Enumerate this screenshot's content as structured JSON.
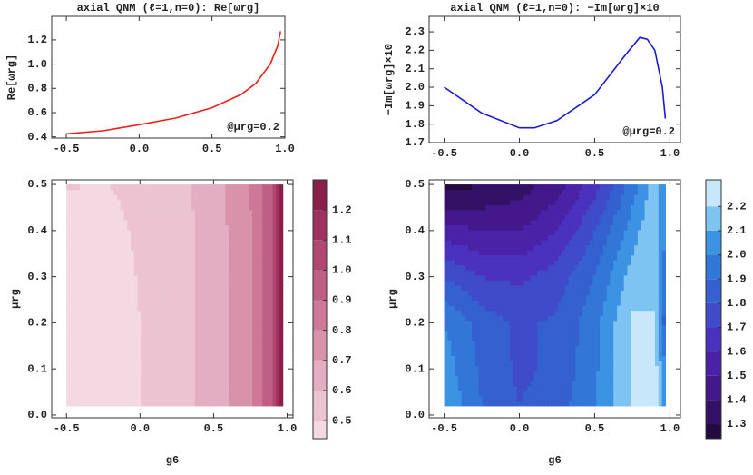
{
  "chart_data": [
    {
      "type": "line",
      "title": "axial QNM (ℓ=1,n=0): Re[ωrg]",
      "ylabel": "Re[ωrg]",
      "annotation": "@μrg=0.2",
      "x": [
        -0.5,
        -0.25,
        0,
        0.25,
        0.5,
        0.7,
        0.8,
        0.9,
        0.95,
        0.97
      ],
      "values": [
        0.425,
        0.45,
        0.5,
        0.555,
        0.64,
        0.75,
        0.84,
        1.0,
        1.15,
        1.27
      ],
      "color": "#e8221b",
      "xlim": [
        -0.6,
        1.0
      ],
      "ylim": [
        0.39,
        1.394
      ],
      "xticks": [
        -0.5,
        {
          "value": 0,
          "label": "0.0"
        },
        0.5,
        {
          "value": 1,
          "label": "1.0"
        }
      ],
      "yticks": [
        0.4,
        0.6,
        0.8,
        {
          "value": 1,
          "label": "1.0"
        },
        1.2
      ]
    },
    {
      "type": "line",
      "title": "axial QNM (ℓ=1,n=0): −Im[ωrg]×10",
      "ylabel": "−Im[ωrg]×10",
      "annotation": "@μrg=0.2",
      "x": [
        -0.5,
        -0.25,
        0,
        0.1,
        0.25,
        0.5,
        0.7,
        0.8,
        0.85,
        0.9,
        0.95,
        0.97
      ],
      "values": [
        2.0,
        1.86,
        1.78,
        1.78,
        1.82,
        1.96,
        2.17,
        2.27,
        2.26,
        2.2,
        2.0,
        1.83
      ],
      "color": "#1a1ad6",
      "xlim": [
        -0.6,
        1.07
      ],
      "ylim": [
        1.7,
        2.384
      ],
      "xticks": [
        -0.5,
        {
          "value": 0,
          "label": "0.0"
        },
        0.5,
        {
          "value": 1,
          "label": "1.0"
        }
      ],
      "yticks": [
        1.7,
        1.8,
        1.9,
        {
          "value": 2,
          "label": "2.0"
        },
        2.1,
        2.2,
        2.3
      ]
    },
    {
      "type": "contour",
      "xlabel": "g6",
      "ylabel": "μrg",
      "x": [
        -0.5,
        -0.25,
        0,
        0.25,
        0.5,
        0.75,
        0.9,
        0.97
      ],
      "y": [
        0.02,
        0.2,
        0.3,
        0.4,
        0.5
      ],
      "z": [
        [
          0.42,
          0.45,
          0.5,
          0.555,
          0.64,
          0.79,
          1.0,
          1.27
        ],
        [
          0.425,
          0.45,
          0.5,
          0.555,
          0.64,
          0.79,
          1.0,
          1.27
        ],
        [
          0.44,
          0.46,
          0.505,
          0.557,
          0.642,
          0.792,
          1.0,
          1.27
        ],
        [
          0.47,
          0.475,
          0.51,
          0.56,
          0.645,
          0.795,
          1.0,
          1.27
        ],
        [
          0.505,
          0.495,
          0.52,
          0.565,
          0.65,
          0.8,
          1.01,
          1.28
        ]
      ],
      "xlim": [
        -0.6,
        1.04
      ],
      "ylim": [
        -0.006,
        0.51
      ],
      "xticks": [
        -0.5,
        {
          "value": 0,
          "label": "0.0"
        },
        0.5,
        {
          "value": 1,
          "label": "1.0"
        }
      ],
      "yticks": [
        {
          "value": 0,
          "label": "0.0"
        },
        0.1,
        0.2,
        0.3,
        0.4,
        0.5
      ],
      "zlim": [
        0.44,
        1.3
      ],
      "zticks": [
        0.5,
        0.6,
        0.7,
        0.8,
        0.9,
        {
          "value": 1,
          "label": "1.0"
        },
        1.1,
        1.2
      ],
      "colors": [
        "#f4d8e2",
        "#ecc3d1",
        "#e3aec1",
        "#d893ab",
        "#cc7896",
        "#bf5f83",
        "#b04770",
        "#9e315d",
        "#88204a"
      ]
    },
    {
      "type": "contour",
      "xlabel": "g6",
      "ylabel": "μrg",
      "x": [
        -0.5,
        -0.25,
        0,
        0.25,
        0.5,
        0.75,
        0.9,
        0.97
      ],
      "y": [
        0.02,
        0.1,
        0.2,
        0.3,
        0.4,
        0.5
      ],
      "z": [
        [
          2.1,
          1.9,
          1.8,
          1.85,
          2.0,
          2.2,
          2.25,
          2.0
        ],
        [
          2.05,
          1.88,
          1.78,
          1.82,
          1.98,
          2.2,
          2.25,
          2.0
        ],
        [
          2.0,
          1.86,
          1.78,
          1.82,
          1.96,
          2.22,
          2.2,
          1.83
        ],
        [
          1.8,
          1.7,
          1.68,
          1.75,
          1.9,
          2.15,
          2.2,
          1.9
        ],
        [
          1.55,
          1.5,
          1.5,
          1.6,
          1.8,
          2.05,
          2.2,
          2.0
        ],
        [
          1.25,
          1.3,
          1.35,
          1.45,
          1.65,
          1.95,
          2.15,
          2.0
        ]
      ],
      "xlim": [
        -0.6,
        1.07
      ],
      "ylim": [
        -0.006,
        0.51
      ],
      "xticks": [
        -0.5,
        {
          "value": 0,
          "label": "0.0"
        },
        0.5,
        {
          "value": 1,
          "label": "1.0"
        }
      ],
      "yticks": [
        {
          "value": 0,
          "label": "0.0"
        },
        0.1,
        0.2,
        0.3,
        0.4,
        0.5
      ],
      "zlim": [
        1.24,
        2.31
      ],
      "zticks": [
        1.3,
        1.4,
        1.5,
        1.6,
        1.7,
        1.8,
        1.9,
        {
          "value": 2,
          "label": "2.0"
        },
        2.1,
        2.2
      ],
      "colors": [
        "#230b3f",
        "#351166",
        "#42188a",
        "#4a22a8",
        "#4b32be",
        "#3f4bc8",
        "#3461cf",
        "#3277d8",
        "#3d93e3",
        "#7ec4f2",
        "#c6e8fa"
      ]
    }
  ]
}
